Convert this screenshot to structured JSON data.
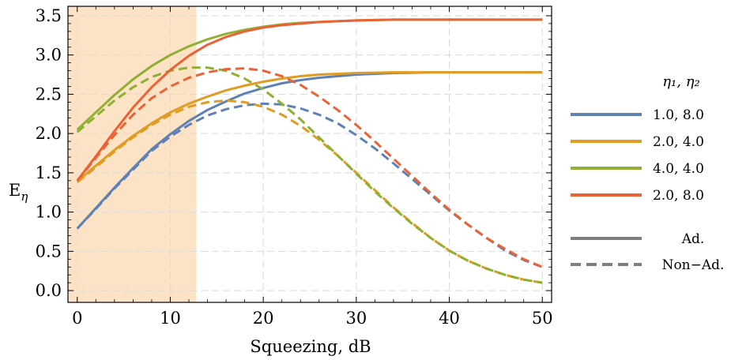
{
  "chart_data": {
    "type": "line",
    "xlabel": "Squeezing, dB",
    "ylabel": "E",
    "ylabel_subscript": "η",
    "xlim": [
      -1,
      51
    ],
    "ylim": [
      -0.15,
      3.62
    ],
    "xticks": [
      0,
      10,
      20,
      30,
      40,
      50
    ],
    "xtick_labels": [
      "0",
      "10",
      "20",
      "30",
      "40",
      "50"
    ],
    "yticks": [
      0.0,
      0.5,
      1.0,
      1.5,
      2.0,
      2.5,
      3.0,
      3.5
    ],
    "ytick_labels": [
      "0.0",
      "0.5",
      "1.0",
      "1.5",
      "2.0",
      "2.5",
      "3.0",
      "3.5"
    ],
    "grid": true,
    "shaded_region": {
      "x_start": -1,
      "x_end": 12.8,
      "color": "#fde3c6"
    },
    "x": [
      0,
      2,
      4,
      6,
      8,
      10,
      12,
      14,
      16,
      18,
      20,
      22,
      24,
      26,
      28,
      30,
      32,
      34,
      36,
      38,
      40,
      42,
      44,
      46,
      48,
      50
    ],
    "legend": {
      "title": "η₁, η₂",
      "placement": "right",
      "entries": [
        "1.0, 8.0",
        "2.0, 4.0",
        "4.0, 4.0",
        "2.0, 8.0"
      ],
      "style_entries": [
        "Ad.",
        "Non−Ad."
      ]
    },
    "series": [
      {
        "params": "1.0, 8.0",
        "style": "Ad.",
        "color": "#5e81b5",
        "dashed": false,
        "values": [
          0.79,
          1.05,
          1.31,
          1.56,
          1.8,
          1.99,
          2.16,
          2.3,
          2.41,
          2.51,
          2.58,
          2.64,
          2.68,
          2.71,
          2.73,
          2.75,
          2.76,
          2.77,
          2.775,
          2.78,
          2.78,
          2.78,
          2.78,
          2.78,
          2.78,
          2.78
        ]
      },
      {
        "params": "1.0, 8.0",
        "style": "Non−Ad.",
        "color": "#5e81b5",
        "dashed": true,
        "values": [
          0.79,
          1.04,
          1.3,
          1.54,
          1.78,
          1.96,
          2.11,
          2.23,
          2.31,
          2.36,
          2.38,
          2.37,
          2.32,
          2.24,
          2.13,
          1.98,
          1.81,
          1.62,
          1.42,
          1.22,
          1.02,
          0.84,
          0.67,
          0.51,
          0.39,
          0.3
        ]
      },
      {
        "params": "2.0, 4.0",
        "style": "Ad.",
        "color": "#e19c24",
        "dashed": false,
        "values": [
          1.39,
          1.59,
          1.79,
          1.97,
          2.13,
          2.27,
          2.38,
          2.47,
          2.55,
          2.61,
          2.66,
          2.7,
          2.73,
          2.75,
          2.76,
          2.77,
          2.775,
          2.78,
          2.78,
          2.78,
          2.78,
          2.78,
          2.78,
          2.78,
          2.78,
          2.78
        ]
      },
      {
        "params": "2.0, 4.0",
        "style": "Non−Ad.",
        "color": "#e19c24",
        "dashed": true,
        "values": [
          1.38,
          1.57,
          1.77,
          1.95,
          2.11,
          2.24,
          2.34,
          2.4,
          2.42,
          2.4,
          2.34,
          2.24,
          2.1,
          1.92,
          1.72,
          1.5,
          1.28,
          1.06,
          0.86,
          0.67,
          0.51,
          0.38,
          0.28,
          0.2,
          0.14,
          0.1
        ]
      },
      {
        "params": "4.0, 4.0",
        "style": "Ad.",
        "color": "#8fb032",
        "dashed": false,
        "values": [
          2.05,
          2.27,
          2.49,
          2.69,
          2.86,
          3.0,
          3.11,
          3.2,
          3.27,
          3.32,
          3.36,
          3.39,
          3.41,
          3.42,
          3.43,
          3.44,
          3.445,
          3.45,
          3.45,
          3.45,
          3.45,
          3.45,
          3.45,
          3.45,
          3.45,
          3.45
        ]
      },
      {
        "params": "4.0, 4.0",
        "style": "Non−Ad.",
        "color": "#8fb032",
        "dashed": true,
        "values": [
          2.02,
          2.22,
          2.42,
          2.59,
          2.72,
          2.8,
          2.84,
          2.84,
          2.8,
          2.7,
          2.56,
          2.38,
          2.18,
          1.95,
          1.72,
          1.49,
          1.26,
          1.05,
          0.85,
          0.67,
          0.51,
          0.38,
          0.28,
          0.2,
          0.14,
          0.1
        ]
      },
      {
        "params": "2.0, 8.0",
        "style": "Ad.",
        "color": "#eb6235",
        "dashed": false,
        "values": [
          1.4,
          1.71,
          2.03,
          2.33,
          2.59,
          2.81,
          2.99,
          3.13,
          3.23,
          3.3,
          3.35,
          3.38,
          3.4,
          3.42,
          3.43,
          3.44,
          3.445,
          3.45,
          3.45,
          3.45,
          3.45,
          3.45,
          3.45,
          3.45,
          3.45,
          3.45
        ]
      },
      {
        "params": "2.0, 8.0",
        "style": "Non−Ad.",
        "color": "#eb6235",
        "dashed": true,
        "values": [
          1.4,
          1.69,
          1.98,
          2.24,
          2.45,
          2.6,
          2.71,
          2.78,
          2.82,
          2.83,
          2.8,
          2.73,
          2.62,
          2.47,
          2.3,
          2.11,
          1.9,
          1.68,
          1.46,
          1.24,
          1.03,
          0.84,
          0.67,
          0.53,
          0.4,
          0.3
        ]
      }
    ]
  }
}
